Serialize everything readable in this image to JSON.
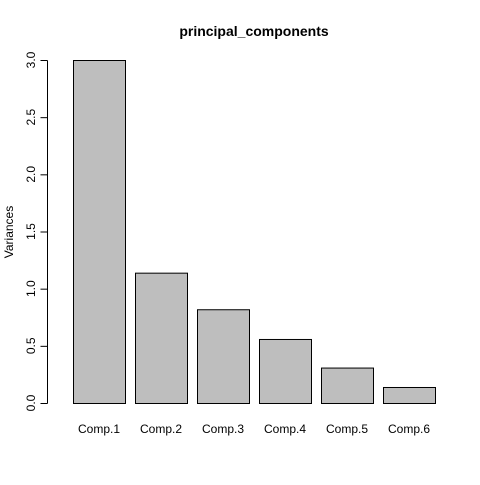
{
  "chart_data": {
    "type": "bar",
    "title": "principal_components",
    "xlabel": "",
    "ylabel": "Variances",
    "categories": [
      "Comp.1",
      "Comp.2",
      "Comp.3",
      "Comp.4",
      "Comp.5",
      "Comp.6"
    ],
    "values": [
      3.0,
      1.14,
      0.82,
      0.56,
      0.31,
      0.14
    ],
    "ylim": [
      0,
      3.0
    ],
    "yticks": [
      "0.0",
      "0.5",
      "1.0",
      "1.5",
      "2.0",
      "2.5",
      "3.0"
    ],
    "grid": false,
    "bar_color": "#bebebe",
    "bar_edge_color": "#000000"
  }
}
